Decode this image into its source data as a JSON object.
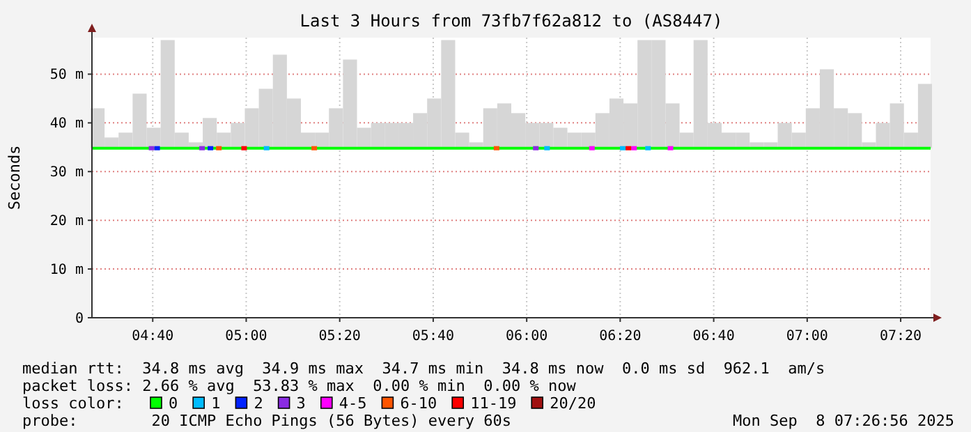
{
  "chart_data": {
    "type": "bar",
    "title": "Last 3 Hours from 73fb7f62a812 to (AS8447)",
    "ylabel": "Seconds",
    "legend_title": "loss color:",
    "x": [
      4.47,
      4.52,
      4.57,
      4.62,
      4.67,
      4.72,
      4.77,
      4.82,
      4.87,
      4.92,
      4.97,
      5.02,
      5.07,
      5.12,
      5.17,
      5.22,
      5.27,
      5.32,
      5.37,
      5.42,
      5.47,
      5.52,
      5.57,
      5.62,
      5.67,
      5.72,
      5.77,
      5.82,
      5.87,
      5.92,
      5.97,
      6.02,
      6.07,
      6.12,
      6.17,
      6.22,
      6.27,
      6.32,
      6.37,
      6.42,
      6.47,
      6.52,
      6.57,
      6.62,
      6.67,
      6.72,
      6.77,
      6.82,
      6.87,
      6.92,
      6.97,
      7.02,
      7.07,
      7.12,
      7.17,
      7.22,
      7.27,
      7.32,
      7.37,
      7.42
    ],
    "xlim": [
      4.45,
      7.44
    ],
    "xticks": [
      {
        "value": 4.6667,
        "label": "04:40"
      },
      {
        "value": 5,
        "label": "05:00"
      },
      {
        "value": 5.3333,
        "label": "05:20"
      },
      {
        "value": 5.6667,
        "label": "05:40"
      },
      {
        "value": 6,
        "label": "06:00"
      },
      {
        "value": 6.3333,
        "label": "06:20"
      },
      {
        "value": 6.6667,
        "label": "06:40"
      },
      {
        "value": 7,
        "label": "07:00"
      },
      {
        "value": 7.3333,
        "label": "07:20"
      }
    ],
    "ylim": [
      0,
      57.5
    ],
    "yticks": [
      0,
      {
        "value": 10,
        "label": "10 m"
      },
      {
        "value": 20,
        "label": "20 m"
      },
      {
        "value": 30,
        "label": "30 m"
      },
      {
        "value": 40,
        "label": "40 m"
      },
      {
        "value": 50,
        "label": "50 m"
      }
    ],
    "grid": true,
    "legend": "bottom left",
    "series": [
      {
        "color": "#d6d6d6",
        "base": [
          34.8,
          34.8,
          34.8,
          34.8,
          34.8,
          34.8,
          34.8,
          34.8,
          34.8,
          34.8,
          34.8,
          34.8,
          34.8,
          34.8,
          34.8,
          34.8,
          34.8,
          34.8,
          34.8,
          34.8,
          34.8,
          34.8,
          34.8,
          34.8,
          34.8,
          34.8,
          34.8,
          34.8,
          34.8,
          34.8,
          34.8,
          34.8,
          34.8,
          34.8,
          34.8,
          34.8,
          34.8,
          34.8,
          34.8,
          34.8,
          34.8,
          34.8,
          34.8,
          34.8,
          34.8,
          34.8,
          34.8,
          34.8,
          34.8,
          34.8,
          34.8,
          34.8,
          34.8,
          34.8,
          34.8,
          34.8,
          34.8,
          34.8,
          34.8,
          34.8
        ],
        "values": [
          8.2,
          2.2,
          3.2,
          11.2,
          4.2,
          22.2,
          3.2,
          1.2,
          6.2,
          3.2,
          5.2,
          8.2,
          12.2,
          19.2,
          10.2,
          3.2,
          3.2,
          8.2,
          18.2,
          4.2,
          5.2,
          5.2,
          5.2,
          7.2,
          10.2,
          22.2,
          3.2,
          1.2,
          8.2,
          9.2,
          7.2,
          5.2,
          5.2,
          4.2,
          3.2,
          3.2,
          7.2,
          10.2,
          9.2,
          22.2,
          22.2,
          9.2,
          3.2,
          22.2,
          5.2,
          3.2,
          3.2,
          1.2,
          1.2,
          5.2,
          3.2,
          8.2,
          16.2,
          8.2,
          7.2,
          1.2,
          5.2,
          9.2,
          3.2,
          13.2
        ]
      },
      {
        "type": "line",
        "name": "0",
        "color": "#00ff00",
        "x": [
          4.45,
          7.44
        ],
        "values": [
          34.8,
          34.8
        ]
      },
      {
        "type": "scatter",
        "marker": "square",
        "name": "1",
        "color": "#00bbff",
        "x": [
          5.07,
          6.07,
          6.34,
          6.43
        ],
        "values": [
          34.8,
          34.8,
          34.8,
          34.8
        ]
      },
      {
        "type": "scatter",
        "marker": "square",
        "name": "2",
        "color": "#0022ff",
        "x": [
          4.68,
          4.87
        ],
        "values": [
          34.8,
          34.8
        ]
      },
      {
        "type": "scatter",
        "marker": "square",
        "name": "3",
        "color": "#8a2be2",
        "x": [
          4.66,
          4.84,
          6.03
        ],
        "values": [
          34.8,
          34.8,
          34.8
        ]
      },
      {
        "type": "scatter",
        "marker": "square",
        "name": "4-5",
        "color": "#ff00ff",
        "x": [
          6.23,
          6.38,
          6.51
        ],
        "values": [
          34.8,
          34.8,
          34.8
        ]
      },
      {
        "type": "scatter",
        "marker": "square",
        "name": "6-10",
        "color": "#ff5500",
        "x": [
          4.9,
          5.24,
          5.89
        ],
        "values": [
          34.8,
          34.8,
          34.8
        ]
      },
      {
        "type": "scatter",
        "marker": "square",
        "name": "11-19",
        "color": "#ff0000",
        "x": [
          4.99,
          6.36
        ],
        "values": [
          34.8,
          34.8
        ]
      },
      {
        "type": "scatter",
        "marker": "square",
        "name": "20/20",
        "color": "#a01010",
        "values": [
          null,
          null,
          null,
          null,
          null,
          null,
          null,
          null,
          null,
          null,
          null,
          null,
          null,
          null,
          null,
          null,
          null,
          null,
          null,
          null,
          null,
          null,
          null,
          null,
          null,
          null,
          null,
          null,
          null,
          null,
          null,
          null,
          null,
          null,
          null,
          null,
          null,
          null,
          null,
          null,
          null,
          null,
          null,
          null,
          null,
          null,
          null,
          null,
          null,
          null,
          null,
          null,
          null,
          null,
          null,
          null,
          null,
          null,
          null,
          null
        ]
      }
    ],
    "annotations": [
      "median rtt:  34.8 ms avg  34.9 ms max  34.7 ms min  34.8 ms now  0.0 ms sd  962.1  am/s",
      "packet loss: 2.66 % avg  53.83 % max  0.00 % min  0.00 % now",
      "probe:        20 ICMP Echo Pings (56 Bytes) every 60s",
      "Mon Sep  8 07:26:56 2025"
    ]
  }
}
